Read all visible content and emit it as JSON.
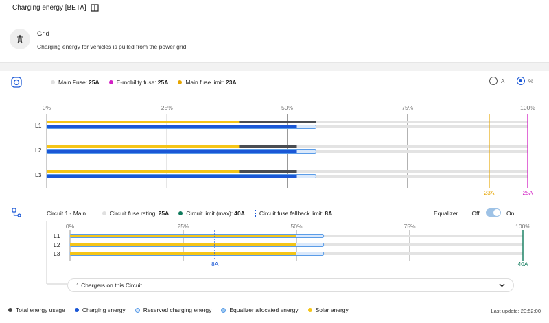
{
  "header": {
    "title": "Charging energy [BETA]"
  },
  "source": {
    "title": "Grid",
    "description": "Charging energy for vehicles is pulled from the power grid."
  },
  "main": {
    "legend": [
      {
        "label": "Main Fuse:",
        "value": "25A",
        "color": "#e0e0e0"
      },
      {
        "label": "E-mobility fuse:",
        "value": "25A",
        "color": "#d21fc4"
      },
      {
        "label": "Main fuse limit:",
        "value": "23A",
        "color": "#e6a500"
      }
    ],
    "unit_options": [
      {
        "label": "A",
        "selected": false
      },
      {
        "label": "%",
        "selected": true
      }
    ],
    "ticks": [
      "0%",
      "25%",
      "50%",
      "75%",
      "100%"
    ],
    "phases": [
      {
        "label": "L1",
        "solar": 0.4,
        "total": 0.56,
        "charging": 0.52,
        "reserved": 0.56
      },
      {
        "label": "L2",
        "solar": 0.4,
        "total": 0.52,
        "charging": 0.52,
        "reserved": 0.56
      },
      {
        "label": "L3",
        "solar": 0.4,
        "total": 0.52,
        "charging": 0.52,
        "reserved": 0.56
      }
    ],
    "limit_labels": {
      "fuse_limit": "23A",
      "emobility": "25A"
    },
    "limit_fractions": {
      "fuse_limit": 0.92,
      "emobility": 1.0
    }
  },
  "circuit": {
    "name": "Circuit 1 - Main",
    "legend": [
      {
        "label": "Circuit fuse rating:",
        "value": "25A",
        "color": "#e0e0e0"
      },
      {
        "label": "Circuit limit (max):",
        "value": "40A",
        "color": "#0f7a5c"
      },
      {
        "label": "Circuit fuse fallback limit:",
        "value": "8A",
        "color": "#1a57d6"
      }
    ],
    "equalizer": {
      "label": "Equalizer",
      "off": "Off",
      "on": "On",
      "enabled": true
    },
    "ticks": [
      "0%",
      "25%",
      "50%",
      "75%",
      "100%"
    ],
    "phases": [
      {
        "label": "L1",
        "solar": 0.5,
        "reserved": 0.56
      },
      {
        "label": "L2",
        "solar": 0.5,
        "reserved": 0.56
      },
      {
        "label": "L3",
        "solar": 0.5,
        "reserved": 0.56
      }
    ],
    "fallback_label": "8A",
    "limit_label": "40A",
    "fallback_fraction": 0.32,
    "limit_fraction": 1.0,
    "chargers_text": "1 Chargers on this Circuit"
  },
  "bottom_legend": [
    {
      "label": "Total energy usage",
      "style": "dot",
      "color": "#444444"
    },
    {
      "label": "Charging energy",
      "style": "dot",
      "color": "#1a57d6"
    },
    {
      "label": "Reserved charging energy",
      "style": "ring"
    },
    {
      "label": "Equalizer allocated energy",
      "style": "ring2"
    },
    {
      "label": "Solar energy",
      "style": "dot",
      "color": "#f5c518"
    }
  ],
  "last_update": "Last update: 20:52:00",
  "colors": {
    "solar": "#f5c518",
    "charging": "#1a57d6",
    "total": "#4a4d52",
    "reserved_fill": "#dbe9fb",
    "reserved_border": "#5a9ce8",
    "track": "#e3e3e3",
    "fuse_limit": "#e6a500",
    "emobility": "#d21fc4",
    "circuit_limit": "#0f7a5c",
    "fallback": "#1a57d6"
  }
}
